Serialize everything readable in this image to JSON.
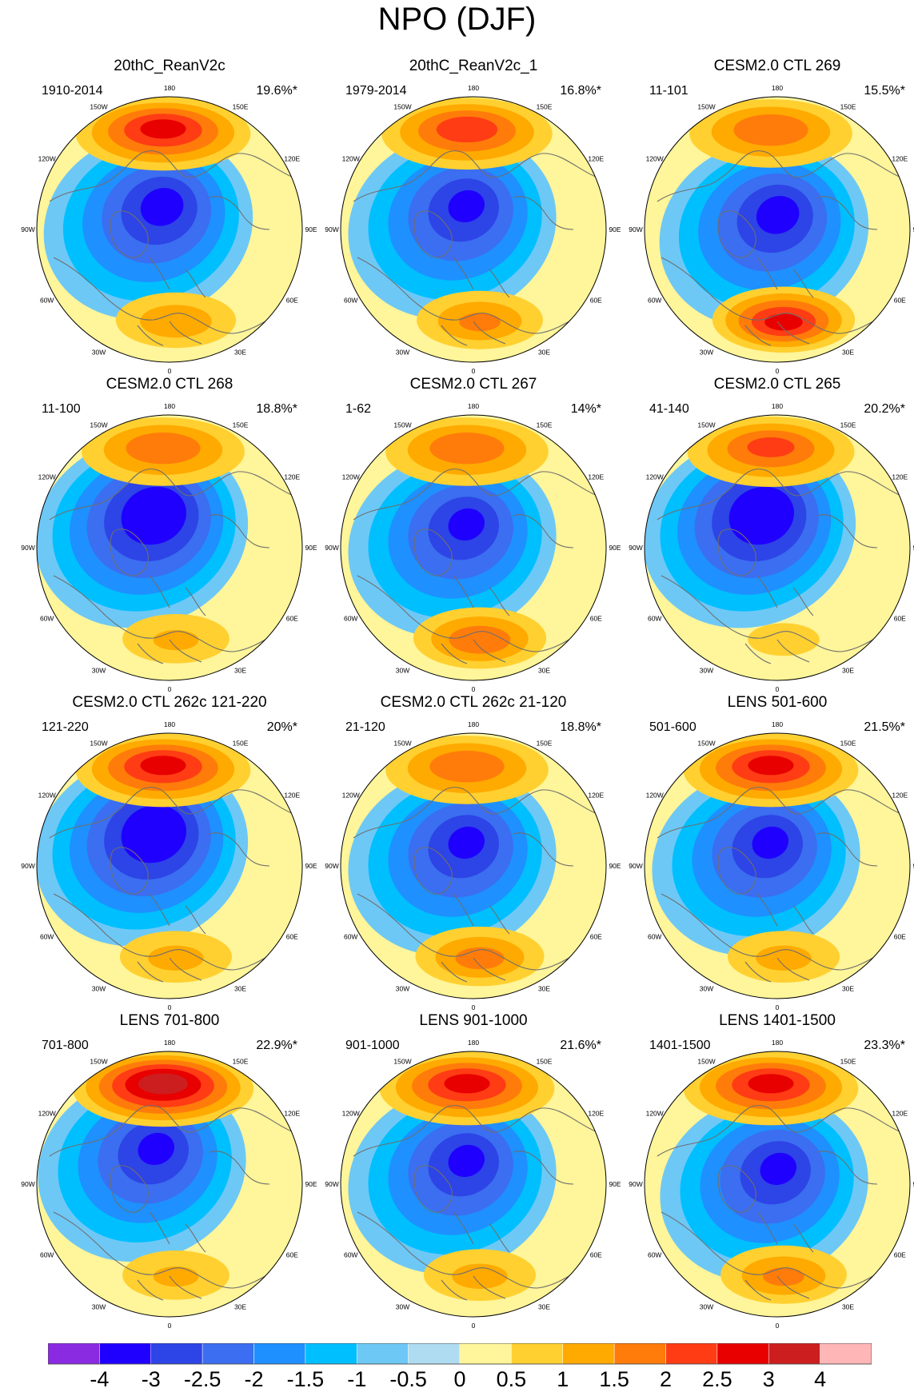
{
  "figure": {
    "title": "NPO (DJF)"
  },
  "longitude_labels": [
    "180",
    "150E",
    "120E",
    "90E",
    "60E",
    "30E",
    "0",
    "30W",
    "60W",
    "90W",
    "120W",
    "150W"
  ],
  "panels": [
    {
      "title": "20thC_ReanV2c",
      "years": "1910-2014",
      "variance": "19.6%*",
      "pacific_high": 2.6,
      "arctic_low": -3.2,
      "atlantic_high": 1.4,
      "low_shift": "pole-pacific"
    },
    {
      "title": "20thC_ReanV2c_1",
      "years": "1979-2014",
      "variance": "16.8%*",
      "pacific_high": 2.3,
      "arctic_low": -3.1,
      "atlantic_high": 1.6,
      "low_shift": "pole-pacific"
    },
    {
      "title": "CESM2.0 CTL 269",
      "years": "11-101",
      "variance": "15.5%*",
      "pacific_high": 1.9,
      "arctic_low": -3.2,
      "atlantic_high": 2.6,
      "low_shift": "pole"
    },
    {
      "title": "CESM2.0 CTL 268",
      "years": "11-100",
      "variance": "18.8%*",
      "pacific_high": 1.9,
      "arctic_low": -3.6,
      "atlantic_high": 1.1,
      "low_shift": "pacific"
    },
    {
      "title": "CESM2.0 CTL 267",
      "years": "1-62",
      "variance": "14%*",
      "pacific_high": 1.9,
      "arctic_low": -3.1,
      "atlantic_high": 1.9,
      "low_shift": "pole-pacific"
    },
    {
      "title": "CESM2.0 CTL 265",
      "years": "41-140",
      "variance": "20.2%*",
      "pacific_high": 2.1,
      "arctic_low": -3.6,
      "atlantic_high": 0.7,
      "low_shift": "pacific"
    },
    {
      "title": "CESM2.0 CTL 262c 121-220",
      "years": "121-220",
      "variance": "20%*",
      "pacific_high": 2.6,
      "arctic_low": -3.6,
      "atlantic_high": 1.2,
      "low_shift": "pacific"
    },
    {
      "title": "CESM2.0 CTL 262c 21-120",
      "years": "21-120",
      "variance": "18.8%*",
      "pacific_high": 1.9,
      "arctic_low": -3.1,
      "atlantic_high": 1.7,
      "low_shift": "pole-pacific"
    },
    {
      "title": "LENS 501-600",
      "years": "501-600",
      "variance": "21.5%*",
      "pacific_high": 2.6,
      "arctic_low": -3.1,
      "atlantic_high": 1.2,
      "low_shift": "pole-pacific"
    },
    {
      "title": "LENS 701-800",
      "years": "701-800",
      "variance": "22.9%*",
      "pacific_high": 3.2,
      "arctic_low": -3.1,
      "atlantic_high": 1.1,
      "low_shift": "pacific"
    },
    {
      "title": "LENS 901-1000",
      "years": "901-1000",
      "variance": "21.6%*",
      "pacific_high": 2.6,
      "arctic_low": -3.1,
      "atlantic_high": 1.2,
      "low_shift": "pole-pacific"
    },
    {
      "title": "LENS 1401-1500",
      "years": "1401-1500",
      "variance": "23.3%*",
      "pacific_high": 2.6,
      "arctic_low": -3.1,
      "atlantic_high": 1.6,
      "low_shift": "pole"
    }
  ],
  "colorbar": {
    "labels": [
      "-4",
      "-3",
      "-2.5",
      "-2",
      "-1.5",
      "-1",
      "-0.5",
      "0",
      "0.5",
      "1",
      "1.5",
      "2",
      "2.5",
      "3",
      "4"
    ],
    "colors": [
      "#8a2be2",
      "#1f00ff",
      "#2d44e6",
      "#3b6ef0",
      "#1e90ff",
      "#00bfff",
      "#6ec8f5",
      "#b0dcf2",
      "#fff59a",
      "#ffd030",
      "#ffaa00",
      "#ff7c0a",
      "#ff3c14",
      "#e80000",
      "#cc1e1e",
      "#ffb6b6"
    ]
  }
}
